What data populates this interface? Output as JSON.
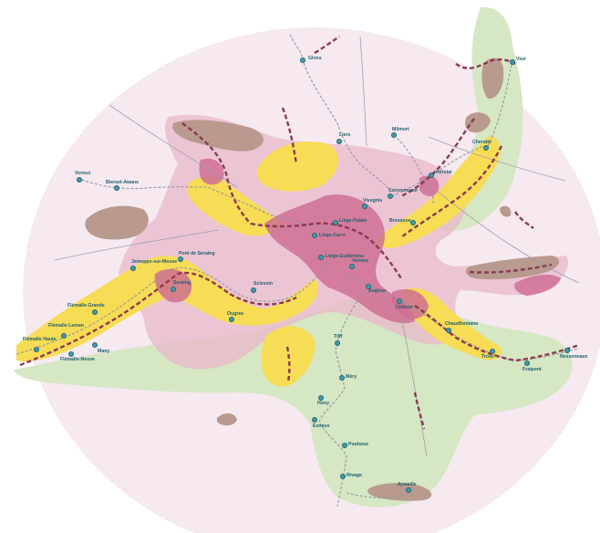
{
  "map": {
    "colors": {
      "background": "#ffffff",
      "disc": "#f6e9f0",
      "pink_zone": "#e8b8cb",
      "magenta_zone": "#cf6f93",
      "yellow_zone": "#f7dc55",
      "green_zone": "#d6e7c4",
      "brown_zone": "#b89a8e",
      "dashed_rail": "#8c3a52",
      "grey_rail": "#8f98a0",
      "road": "#9aa1a8",
      "station_fill": "#3d9aa6",
      "station_stroke": "#1f5f6e",
      "label": "#1f5f6e"
    },
    "legend_visible": false,
    "stations": [
      {
        "id": "s-glons",
        "name": "Glons"
      },
      {
        "id": "s-vise",
        "name": "Visé"
      },
      {
        "id": "s-liers",
        "name": "Liers"
      },
      {
        "id": "s-milmort",
        "name": "Milmort"
      },
      {
        "id": "s-cheratte",
        "name": "Cheratte"
      },
      {
        "id": "s-herstal",
        "name": "Herstal"
      },
      {
        "id": "s-voroux",
        "name": "Voroux"
      },
      {
        "id": "s-bierset",
        "name": "Bierset-Awans"
      },
      {
        "id": "s-coronmeuse",
        "name": "Coronmeuse"
      },
      {
        "id": "s-vivegnis",
        "name": "Vivegnis"
      },
      {
        "id": "s-bressoux",
        "name": "Bressoux"
      },
      {
        "id": "s-liege-palais",
        "name": "Liège-Palais"
      },
      {
        "id": "s-liege-carre",
        "name": "Liège-Carré"
      },
      {
        "id": "s-liege-guillemins",
        "name": "Liège-Guillemins"
      },
      {
        "id": "s-jemeppe",
        "name": "Jemeppe-sur-Meuse"
      },
      {
        "id": "s-pont-seraing",
        "name": "Pont de Seraing"
      },
      {
        "id": "s-sclessin",
        "name": "Sclessin"
      },
      {
        "id": "s-seraing",
        "name": "Seraing"
      },
      {
        "id": "s-ougree",
        "name": "Ougrée"
      },
      {
        "id": "s-flemalle-grande",
        "name": "Flémalle-Grande"
      },
      {
        "id": "s-flemalle-leman",
        "name": "Flémalle Leman"
      },
      {
        "id": "s-flemalle-haute",
        "name": "Flémalle Haute"
      },
      {
        "id": "s-flemalle-neuve",
        "name": "Flémalle-Neuve"
      },
      {
        "id": "s-many",
        "name": "Many"
      },
      {
        "id": "s-vennes",
        "name": "Vennes"
      },
      {
        "id": "s-angleur",
        "name": "Angleur"
      },
      {
        "id": "s-chenee",
        "name": "Chênée"
      },
      {
        "id": "s-chaudfontaine",
        "name": "Chaudfontaine"
      },
      {
        "id": "s-trooz",
        "name": "Trooz"
      },
      {
        "id": "s-fraipont",
        "name": "Fraipont"
      },
      {
        "id": "s-nessonvaux",
        "name": "Nessonvaux"
      },
      {
        "id": "s-tilff",
        "name": "Tilff"
      },
      {
        "id": "s-mery",
        "name": "Méry"
      },
      {
        "id": "s-hony",
        "name": "Hony"
      },
      {
        "id": "s-esneux",
        "name": "Esneux"
      },
      {
        "id": "s-poulseur",
        "name": "Poulseur"
      },
      {
        "id": "s-rivage",
        "name": "Rivage"
      },
      {
        "id": "s-aywaille",
        "name": "Aywaille"
      }
    ]
  }
}
